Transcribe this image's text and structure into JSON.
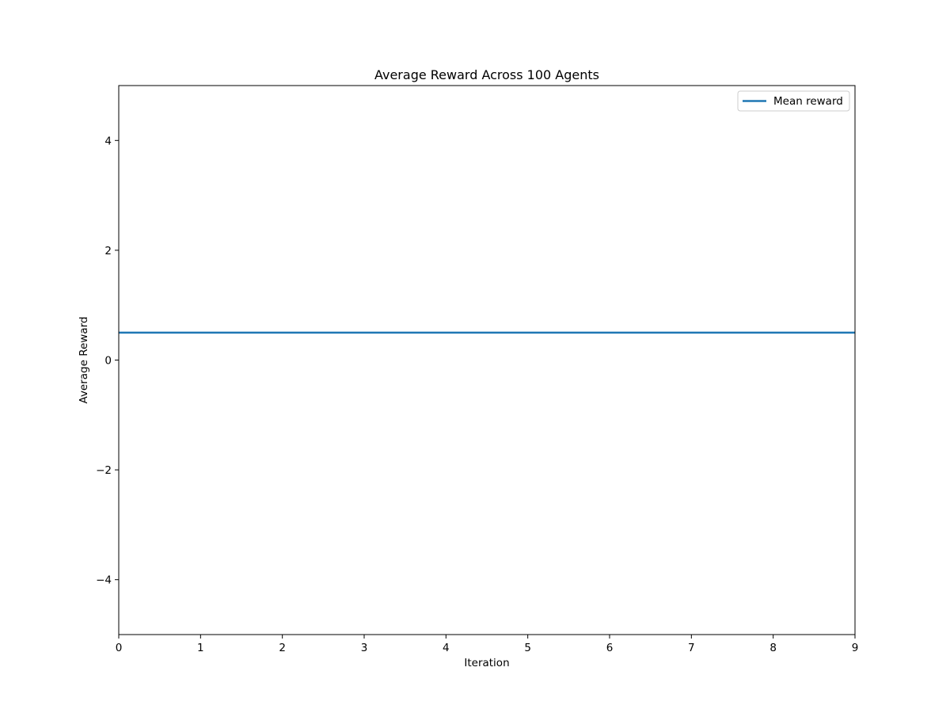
{
  "chart_data": {
    "type": "line",
    "title": "Average Reward Across 100 Agents",
    "xlabel": "Iteration",
    "ylabel": "Average Reward",
    "xlim": [
      0,
      9
    ],
    "ylim": [
      -5,
      5
    ],
    "x_ticks": [
      0,
      1,
      2,
      3,
      4,
      5,
      6,
      7,
      8,
      9
    ],
    "y_ticks": [
      -4,
      -2,
      0,
      2,
      4
    ],
    "y_tick_labels": [
      "−4",
      "−2",
      "0",
      "2",
      "4"
    ],
    "grid": false,
    "legend_position": "upper right",
    "series": [
      {
        "name": "Mean reward",
        "color": "#1f77b4",
        "x": [
          0,
          1,
          2,
          3,
          4,
          5,
          6,
          7,
          8,
          9
        ],
        "y": [
          0.5,
          0.5,
          0.5,
          0.5,
          0.5,
          0.5,
          0.5,
          0.5,
          0.5,
          0.5
        ]
      }
    ]
  }
}
